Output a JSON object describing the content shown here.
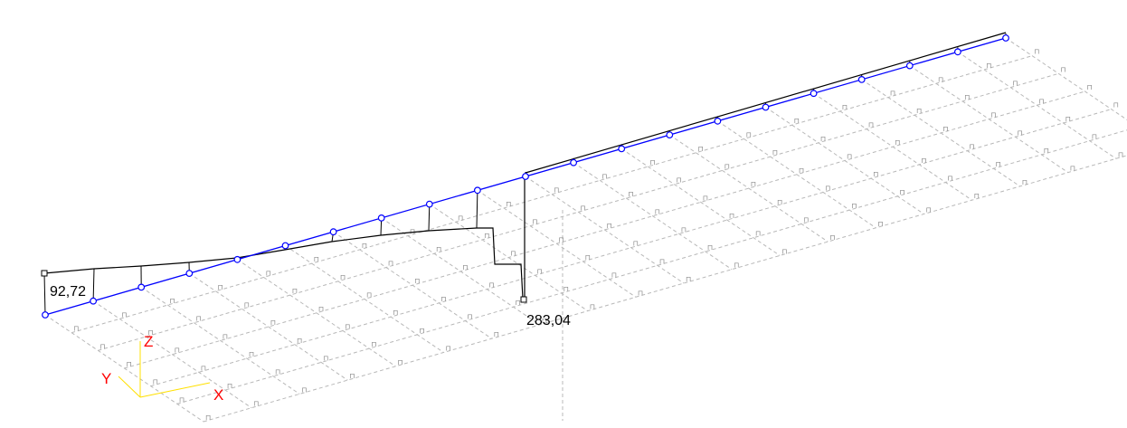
{
  "diagram": {
    "value_labels": [
      {
        "id": "left-end-value",
        "text": "92,72"
      },
      {
        "id": "peak-value",
        "text": "283,04"
      }
    ],
    "axes": {
      "x": {
        "label": "X",
        "color": "#ff0000"
      },
      "y": {
        "label": "Y",
        "color": "#ff0000"
      },
      "z": {
        "label": "Z",
        "color": "#ff0000"
      },
      "line_color": "#ffe000"
    },
    "colors": {
      "beam": "#0000ff",
      "node": "#0000ff",
      "diagram_line": "#000000",
      "grid": "#b8b8b8",
      "support": "#8a8a8a"
    },
    "support_symbol": "⊓"
  }
}
